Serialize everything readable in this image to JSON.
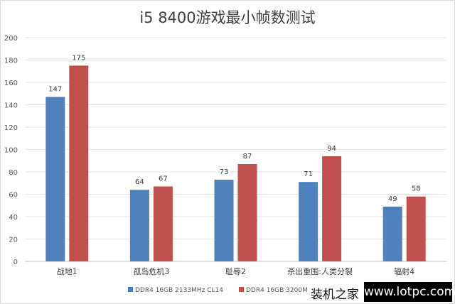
{
  "chart_data": {
    "type": "bar",
    "title": "i5 8400游戏最小帧数测试",
    "categories": [
      "战地1",
      "孤岛危机3",
      "耻辱2",
      "杀出重围:人类分裂",
      "辐射4"
    ],
    "series": [
      {
        "name": "DDR4 16GB 2133MHz CL14",
        "color": "#4f81bd",
        "values": [
          147,
          64,
          73,
          71,
          49
        ]
      },
      {
        "name": "DDR4 16GB 3200M",
        "color": "#c0504d",
        "values": [
          175,
          67,
          87,
          94,
          58
        ]
      }
    ],
    "ylim": [
      0,
      200
    ],
    "yticks": [
      0,
      20,
      40,
      60,
      80,
      100,
      120,
      140,
      160,
      180,
      200
    ],
    "grid": true,
    "legend": "bottom",
    "xlabel": "",
    "ylabel": ""
  },
  "watermark": {
    "brand": "装机之家",
    "url": "www.lotpc.com"
  }
}
